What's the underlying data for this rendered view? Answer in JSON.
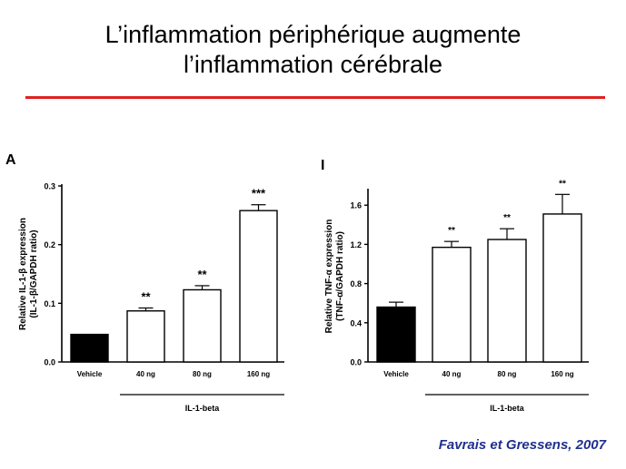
{
  "slide": {
    "title_line1": "L’inflammation périphérique augmente",
    "title_line2": "l’inflammation cérébrale",
    "rule_color": "#e02020",
    "citation": "Favrais et Gressens, 2007",
    "citation_color": "#1f2f8f"
  },
  "chart_data": [
    {
      "type": "bar",
      "panel_label": "A",
      "categories": [
        "Vehicle",
        "40 ng",
        "80 ng",
        "160 ng"
      ],
      "values": [
        0.047,
        0.087,
        0.123,
        0.258
      ],
      "errors": [
        0.0,
        0.005,
        0.007,
        0.01
      ],
      "significance": [
        "",
        "**",
        "**",
        "***"
      ],
      "bar_fills": [
        "#000000",
        "#ffffff",
        "#ffffff",
        "#ffffff"
      ],
      "ylabel_line1": "Relative IL-1-β expression",
      "ylabel_line2": "(IL-1-β/GAPDH ratio)",
      "group_label": "IL-1-beta",
      "ylim": [
        0,
        0.3
      ],
      "yticks": [
        "0.0",
        "0.1",
        "0.2",
        "0.3"
      ],
      "ytick_values": [
        0,
        0.1,
        0.2,
        0.3
      ],
      "grid": false
    },
    {
      "type": "bar",
      "panel_label": "I",
      "categories": [
        "Vehicle",
        "40 ng",
        "80 ng",
        "160 ng"
      ],
      "values": [
        0.56,
        1.17,
        1.25,
        1.51
      ],
      "errors": [
        0.05,
        0.06,
        0.11,
        0.2
      ],
      "significance": [
        "",
        "**",
        "**",
        "**"
      ],
      "bar_fills": [
        "#000000",
        "#ffffff",
        "#ffffff",
        "#ffffff"
      ],
      "ylabel_line1": "Relative TNF-α expression",
      "ylabel_line2": "(TNF-α/GAPDH ratio)",
      "group_label": "IL-1-beta",
      "ylim": [
        0,
        1.75
      ],
      "yticks": [
        "0.0",
        "0.4",
        "0.8",
        "1.2",
        "1.6"
      ],
      "ytick_values": [
        0,
        0.4,
        0.8,
        1.2,
        1.6
      ],
      "grid": false
    }
  ]
}
